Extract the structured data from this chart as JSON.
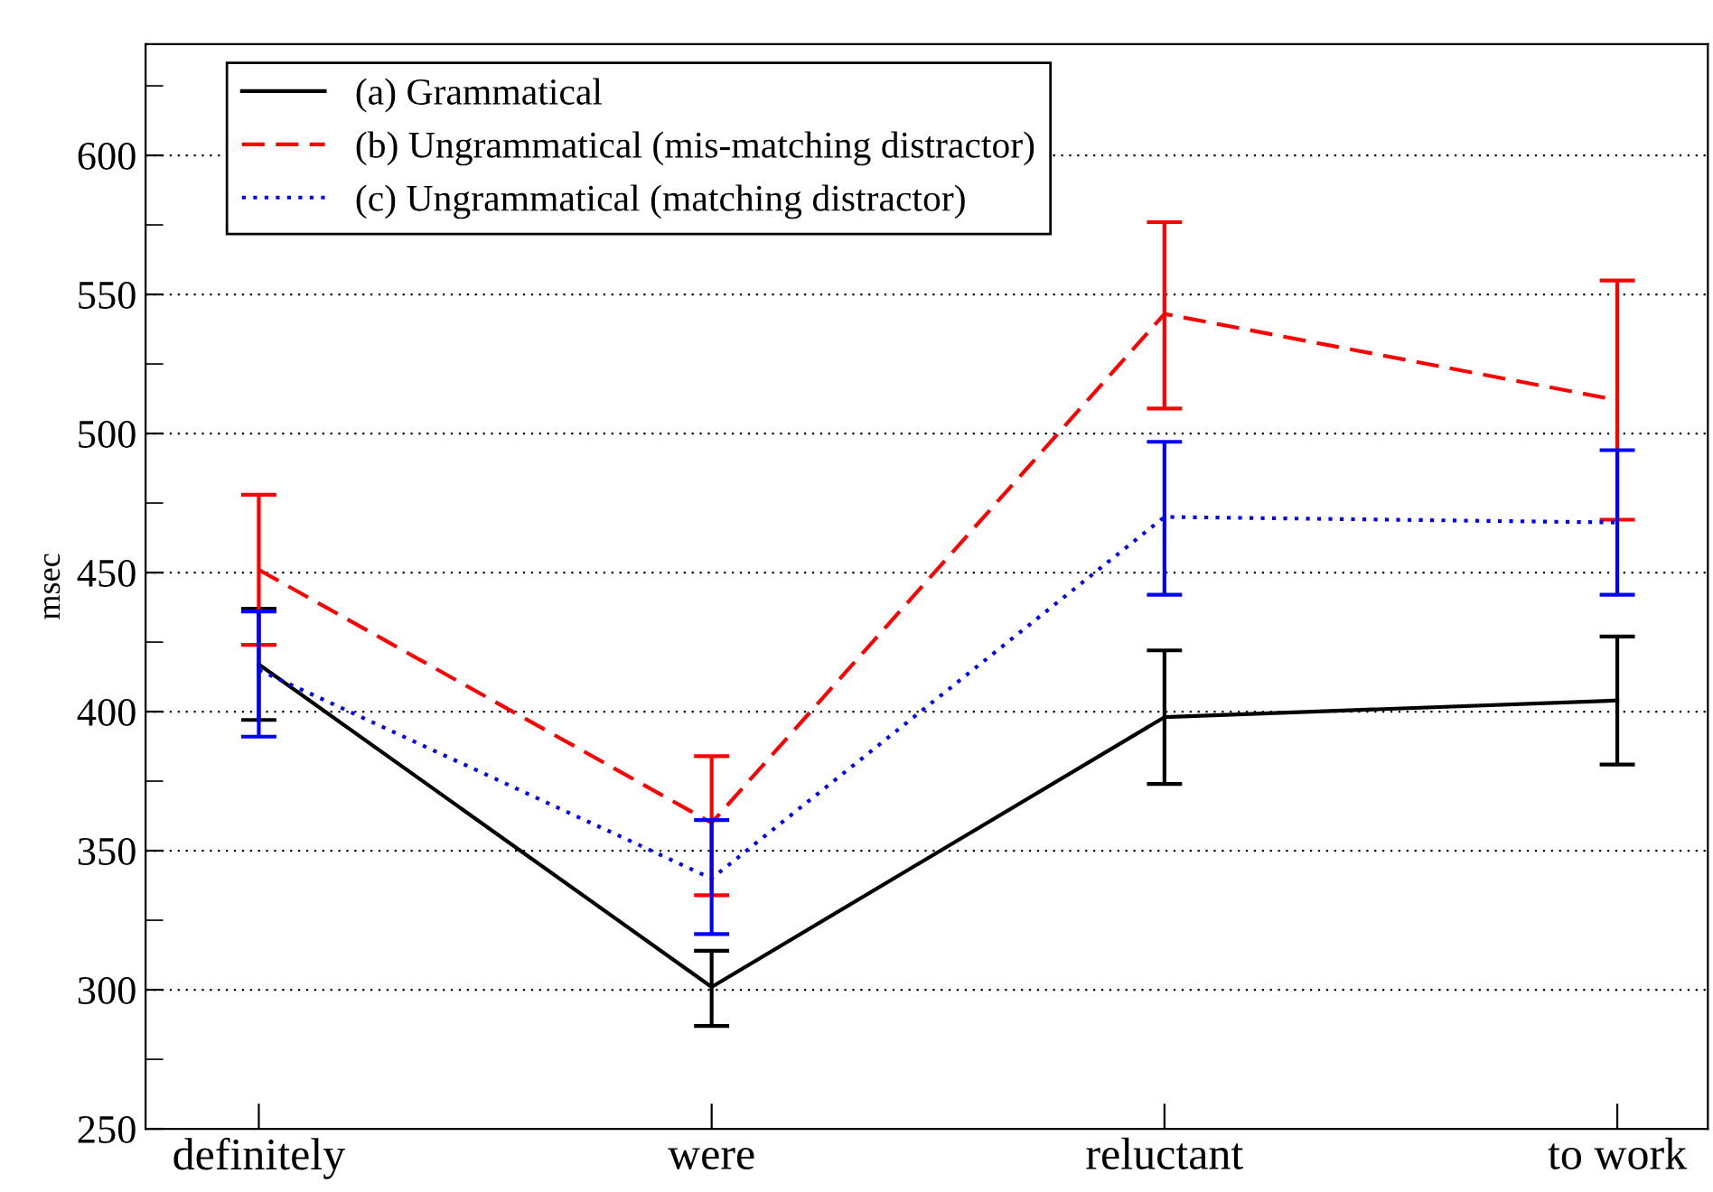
{
  "chart_data": {
    "type": "line",
    "ylabel": "msec",
    "categories": [
      "definitely",
      "were",
      "reluctant",
      "to work"
    ],
    "series": [
      {
        "name": "(a) Grammatical",
        "color": "#000000",
        "line_style": "solid",
        "values": [
          417,
          301,
          398,
          404
        ],
        "errors": [
          [
            397,
            437
          ],
          [
            287,
            314
          ],
          [
            374,
            422
          ],
          [
            381,
            427
          ]
        ]
      },
      {
        "name": "(b) Ungrammatical (mis-matching distractor)",
        "color": "#ff0000",
        "line_style": "dashed",
        "values": [
          451,
          360,
          543,
          512
        ],
        "errors": [
          [
            424,
            478
          ],
          [
            334,
            384
          ],
          [
            509,
            576
          ],
          [
            469,
            555
          ]
        ]
      },
      {
        "name": "(c) Ungrammatical (matching distractor)",
        "color": "#0000ff",
        "line_style": "dotted",
        "values": [
          415,
          340,
          470,
          468
        ],
        "errors": [
          [
            391,
            436
          ],
          [
            320,
            361
          ],
          [
            442,
            497
          ],
          [
            442,
            494
          ]
        ]
      }
    ],
    "ylim": [
      250,
      640
    ],
    "yticks": [
      250,
      {
        "value": 275,
        "label": null
      },
      300,
      {
        "value": 325,
        "label": null
      },
      350,
      {
        "value": 375,
        "label": null
      },
      400,
      {
        "value": 425,
        "label": null
      },
      450,
      {
        "value": 475,
        "label": null
      },
      500,
      {
        "value": 525,
        "label": null
      },
      550,
      {
        "value": 575,
        "label": null
      },
      600,
      {
        "value": 625,
        "label": null
      }
    ],
    "grid": "y",
    "legend": "top left",
    "marker": "none"
  }
}
